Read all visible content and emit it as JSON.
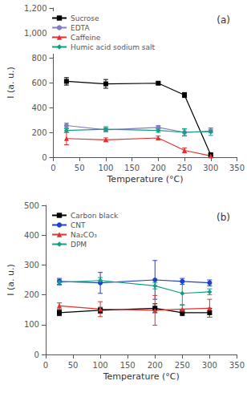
{
  "chart_data": [
    {
      "type": "line",
      "title": "(a)",
      "x_label": "Temperature (°C)",
      "y_label": "I (a. u.)",
      "x": [
        25,
        100,
        200,
        250,
        300
      ],
      "xlim": [
        0,
        350
      ],
      "ylim": [
        0,
        1200
      ],
      "xticks": [
        0,
        50,
        100,
        150,
        200,
        250,
        300,
        350
      ],
      "yticks": [
        0,
        200,
        400,
        600,
        800,
        1000,
        1200
      ],
      "grid": false,
      "legend": "upper left",
      "series": [
        {
          "name": "Sucrose",
          "color": "#000000",
          "marker": "square",
          "values": [
            610,
            590,
            595,
            500,
            20
          ],
          "yerr": [
            30,
            35,
            10,
            20,
            10
          ]
        },
        {
          "name": "EDTA",
          "color": "#8080c0",
          "marker": "circle",
          "values": [
            255,
            220,
            240,
            200,
            210
          ],
          "yerr": [
            20,
            15,
            15,
            25,
            15
          ]
        },
        {
          "name": "Caffeine",
          "color": "#e03030",
          "marker": "triangle",
          "values": [
            150,
            140,
            155,
            55,
            10
          ],
          "yerr": [
            50,
            15,
            15,
            20,
            10
          ]
        },
        {
          "name": "Humic acid sodium salt",
          "color": "#10a080",
          "marker": "diamond",
          "values": [
            215,
            225,
            215,
            200,
            205
          ],
          "yerr": [
            15,
            20,
            15,
            30,
            30
          ]
        }
      ]
    },
    {
      "type": "line",
      "title": "(b)",
      "x_label": "Temperature (°C)",
      "y_label": "I (a. u.)",
      "x": [
        25,
        100,
        200,
        250,
        300
      ],
      "xlim": [
        0,
        350
      ],
      "ylim": [
        0,
        500
      ],
      "xticks": [
        0,
        50,
        100,
        150,
        200,
        250,
        300,
        350
      ],
      "yticks": [
        0,
        100,
        200,
        300,
        400,
        500
      ],
      "grid": false,
      "legend": "upper left",
      "series": [
        {
          "name": "Carbon black",
          "color": "#000000",
          "marker": "square",
          "values": [
            140,
            148,
            155,
            140,
            140
          ],
          "yerr": [
            10,
            10,
            15,
            10,
            15
          ]
        },
        {
          "name": "CNT",
          "color": "#2040d0",
          "marker": "circle",
          "values": [
            245,
            240,
            250,
            245,
            240
          ],
          "yerr": [
            10,
            35,
            65,
            10,
            10
          ]
        },
        {
          "name": "Na₂CO₃",
          "color": "#e03030",
          "marker": "triangle",
          "values": [
            163,
            152,
            148,
            152,
            155
          ],
          "yerr": [
            10,
            25,
            50,
            15,
            30
          ]
        },
        {
          "name": "DPM",
          "color": "#10a080",
          "marker": "diamond",
          "values": [
            242,
            248,
            230,
            205,
            210
          ],
          "yerr": [
            10,
            10,
            10,
            40,
            10
          ]
        }
      ]
    }
  ]
}
